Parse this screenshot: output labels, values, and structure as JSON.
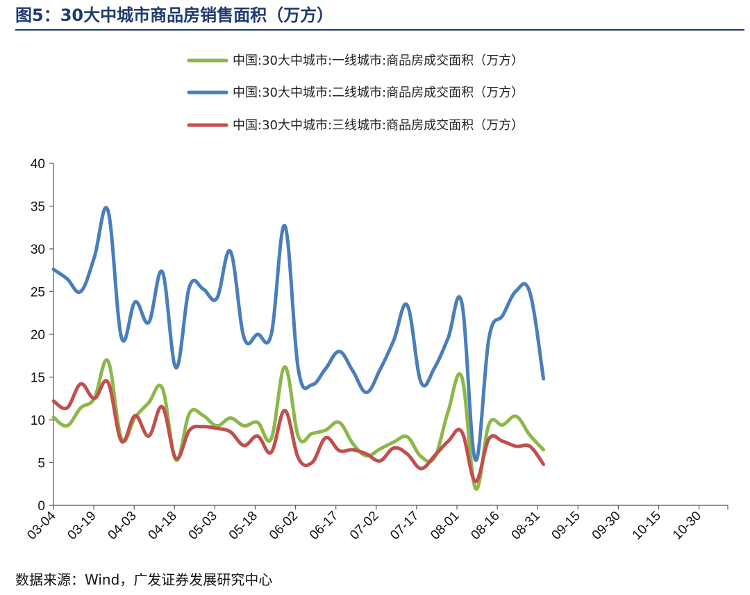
{
  "header": {
    "title": "图5：30大中城市商品房销售面积（万方）"
  },
  "footer": {
    "source": "数据来源：Wind，广发证券发展研究中心"
  },
  "chart_data": {
    "type": "line",
    "title": "",
    "xlabel": "",
    "ylabel": "",
    "ylim": [
      0,
      40
    ],
    "yticks": [
      0,
      5,
      10,
      15,
      20,
      25,
      30,
      35,
      40
    ],
    "x_tick_labels": [
      "03-04",
      "03-19",
      "04-03",
      "04-18",
      "05-03",
      "05-18",
      "06-02",
      "06-17",
      "07-02",
      "07-17",
      "08-01",
      "08-16",
      "08-31",
      "09-15",
      "09-30",
      "10-15",
      "10-30"
    ],
    "legend_position": "top",
    "grid": false,
    "colors": {
      "tier1": "#8cb84a",
      "tier2": "#4a7ebb",
      "tier3": "#c0504d",
      "axis": "#555555"
    },
    "series": [
      {
        "name": "中国:30大中城市:一线城市:商品房成交面积（万方）",
        "color": "#8cb84a",
        "values": [
          10.3,
          9.3,
          11.4,
          12.5,
          16.9,
          7.8,
          10.3,
          12.0,
          13.7,
          5.3,
          10.8,
          10.5,
          9.3,
          10.2,
          9.3,
          9.7,
          7.8,
          16.2,
          8.0,
          8.4,
          8.8,
          9.7,
          7.2,
          5.8,
          6.6,
          7.4,
          8.0,
          5.7,
          5.6,
          11.0,
          15.0,
          2.0,
          9.5,
          9.4,
          10.4,
          8.2,
          6.5
        ]
      },
      {
        "name": "中国:30大中城市:二线城市:商品房成交面积（万方）",
        "color": "#4a7ebb",
        "values": [
          27.6,
          26.5,
          25.0,
          29.0,
          34.5,
          19.6,
          23.8,
          21.4,
          27.3,
          16.1,
          25.6,
          25.3,
          24.2,
          29.7,
          19.6,
          20.0,
          20.0,
          32.7,
          15.8,
          14.1,
          16.0,
          18.0,
          15.7,
          13.2,
          15.9,
          19.3,
          23.4,
          14.4,
          16.1,
          19.6,
          23.7,
          5.3,
          19.6,
          22.2,
          25.1,
          24.9,
          14.8
        ]
      },
      {
        "name": "中国:30大中城市:三线城市:商品房成交面积（万方）",
        "color": "#c0504d",
        "values": [
          12.2,
          11.4,
          14.2,
          12.5,
          14.4,
          7.5,
          10.5,
          8.1,
          11.5,
          5.5,
          8.8,
          9.2,
          9.0,
          8.6,
          7.0,
          8.1,
          6.2,
          11.1,
          5.5,
          5.0,
          7.9,
          6.4,
          6.5,
          6.0,
          5.2,
          6.7,
          6.0,
          4.3,
          5.8,
          7.5,
          8.6,
          2.8,
          7.8,
          7.5,
          6.9,
          6.9,
          4.8
        ]
      }
    ]
  }
}
